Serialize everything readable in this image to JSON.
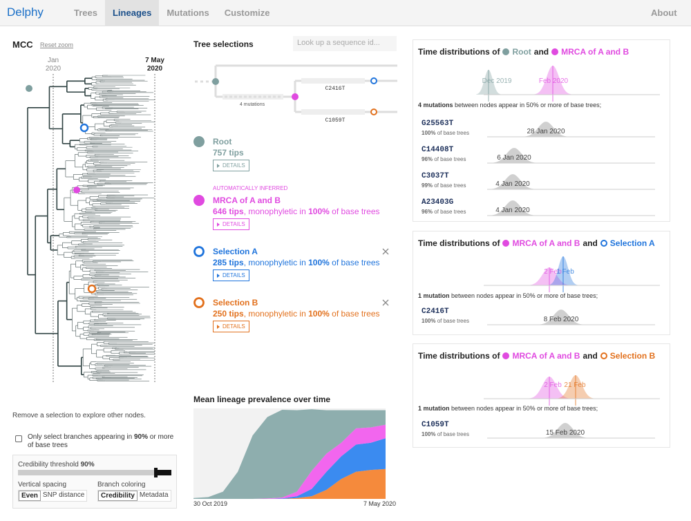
{
  "nav": {
    "brand": "Delphy",
    "tabs": [
      "Trees",
      "Lineages",
      "Mutations",
      "Customize"
    ],
    "about": "About"
  },
  "tree_panel": {
    "title": "MCC",
    "reset": "Reset zoom",
    "axis_labels": [
      [
        "Jan",
        "2020"
      ],
      [
        "7 May",
        "2020"
      ]
    ],
    "hint": "Remove a selection to explore other nodes.",
    "checkbox": {
      "before": "Only select branches appearing in",
      "pct": "90%",
      "after": "or more of base trees"
    },
    "threshold": {
      "label": "Credibility threshold",
      "value": "90%"
    },
    "spacing": {
      "label": "Vertical spacing",
      "options": [
        "Even",
        "SNP distance"
      ]
    },
    "coloring": {
      "label": "Branch coloring",
      "options": [
        "Credibility",
        "Metadata"
      ]
    }
  },
  "selections_panel": {
    "title": "Tree selections",
    "search": "Look up a sequence id...",
    "mini_tree": {
      "mutations": "4 mutations",
      "a_label": "C2416T",
      "b_label": "C1059T"
    },
    "common": {
      "monophyletic": ", monophyletic in",
      "of_base_trees": "of base trees",
      "details": "DETAILS"
    },
    "items": [
      {
        "name": "Root",
        "tips": "757 tips",
        "color": "#7f9f9f"
      },
      {
        "note": "AUTOMATICALLY INFERRED",
        "name": "MRCA of A and B",
        "tips": "646 tips",
        "pct": "100%",
        "color": "#e04ae0"
      },
      {
        "name": "Selection A",
        "tips": "285 tips",
        "pct": "100%",
        "color": "#1f74dc"
      },
      {
        "name": "Selection B",
        "tips": "250 tips",
        "pct": "100%",
        "color": "#e2701c"
      }
    ]
  },
  "chart_data": {
    "type": "area",
    "title": "Mean lineage prevalence over time",
    "x_labels": [
      "30 Oct 2019",
      "7 May 2020"
    ],
    "ylim": [
      0,
      1
    ],
    "series": [
      {
        "color": "#f58a3c",
        "values": [
          0,
          0,
          0,
          0,
          0,
          0,
          0,
          0.01,
          0.03,
          0.1,
          0.22,
          0.3,
          0.32,
          0.33
        ]
      },
      {
        "color": "#3b8bf0",
        "values": [
          0,
          0,
          0,
          0,
          0,
          0,
          0.005,
          0.02,
          0.08,
          0.2,
          0.25,
          0.3,
          0.3,
          0.34
        ]
      },
      {
        "color": "#f266ee",
        "values": [
          0,
          0,
          0,
          0,
          0,
          0.005,
          0.01,
          0.05,
          0.2,
          0.2,
          0.15,
          0.18,
          0.17,
          0.15
        ]
      },
      {
        "color": "#8eaeae",
        "values": [
          0.01,
          0.02,
          0.08,
          0.3,
          0.7,
          0.9,
          0.97,
          0.9,
          0.68,
          0.48,
          0.36,
          0.2,
          0.19,
          0.16
        ]
      }
    ]
  },
  "time_panels": [
    {
      "prefix": "Time distributions of",
      "and": "and",
      "a": {
        "label": "Root",
        "color": "#7f9f9f",
        "ring": false
      },
      "b": {
        "label": "MRCA of A and B",
        "color": "#e04ae0",
        "ring": false
      },
      "peak_labels": [
        "Dec 2019",
        "Feb 2020"
      ],
      "summary_bold": "4 mutations",
      "summary": "between nodes appear in 50% or more of base trees;",
      "mutations": [
        {
          "name": "G25563T",
          "pct": "100%",
          "date": "28 Jan 2020"
        },
        {
          "name": "C14408T",
          "pct": "96%",
          "date": "6 Jan 2020"
        },
        {
          "name": "C3037T",
          "pct": "99%",
          "date": "4 Jan 2020"
        },
        {
          "name": "A23403G",
          "pct": "96%",
          "date": "4 Jan 2020"
        }
      ]
    },
    {
      "prefix": "Time distributions of",
      "and": "and",
      "a": {
        "label": "MRCA of A and B",
        "color": "#e04ae0",
        "ring": false
      },
      "b": {
        "label": "Selection A",
        "color": "#1f74dc",
        "ring": true
      },
      "peak_labels": [
        "2 Feb",
        "1 Feb"
      ],
      "summary_bold": "1 mutation",
      "summary": "between nodes appear in 50% or more of base trees;",
      "mutations": [
        {
          "name": "C2416T",
          "pct": "100%",
          "date": "8 Feb 2020"
        }
      ]
    },
    {
      "prefix": "Time distributions of",
      "and": "and",
      "a": {
        "label": "MRCA of A and B",
        "color": "#e04ae0",
        "ring": false
      },
      "b": {
        "label": "Selection B",
        "color": "#e2701c",
        "ring": true
      },
      "peak_labels": [
        "2 Feb",
        "21 Feb"
      ],
      "summary_bold": "1 mutation",
      "summary": "between nodes appear in 50% or more of base trees;",
      "mutations": [
        {
          "name": "C1059T",
          "pct": "100%",
          "date": "15 Feb 2020"
        }
      ]
    }
  ]
}
